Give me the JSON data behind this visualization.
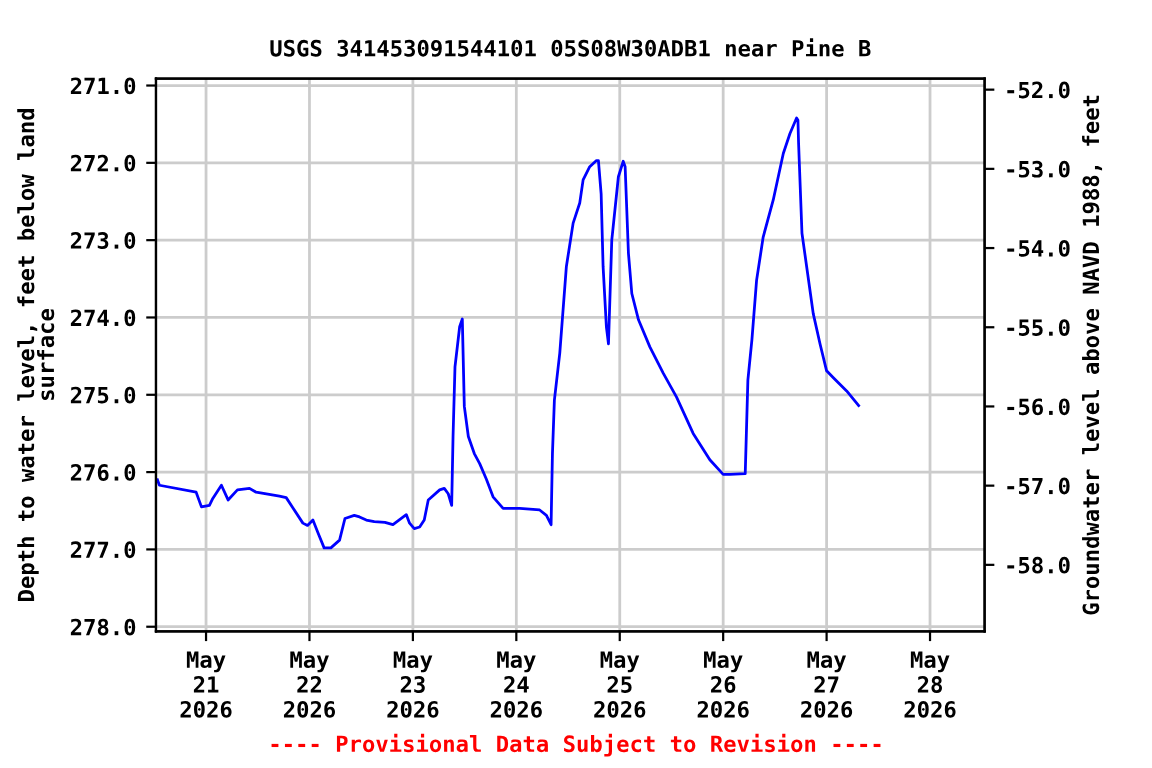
{
  "chart_data": {
    "type": "line",
    "title": "USGS 341453091544101 05S08W30ADB1 near Pine B",
    "ylabel": "Depth to water level, feet below land\nsurface",
    "y2label": "Groundwater level above NAVD 1988, feet",
    "annotations": [
      "---- Provisional Data Subject to Revision ----"
    ],
    "series": [
      {
        "color": "#0000ff",
        "x": [
          "2026-05-20T12:43",
          "2026-05-20T13:11",
          "2026-05-20T21:42",
          "2026-05-20T22:56",
          "2026-05-21T00:47",
          "2026-05-21T01:34",
          "2026-05-21T03:34",
          "2026-05-21T05:07",
          "2026-05-21T07:17",
          "2026-05-21T10:05",
          "2026-05-21T11:37",
          "2026-05-21T17:02",
          "2026-05-21T18:36",
          "2026-05-21T20:08",
          "2026-05-21T22:28",
          "2026-05-21T23:33",
          "2026-05-22T00:48",
          "2026-05-22T02:01",
          "2026-05-22T03:24",
          "2026-05-22T04:58",
          "2026-05-22T06:59",
          "2026-05-22T08:14",
          "2026-05-22T10:24",
          "2026-05-22T11:37",
          "2026-05-22T13:11",
          "2026-05-22T15:02",
          "2026-05-22T17:31",
          "2026-05-22T19:22",
          "2026-05-22T22:28",
          "2026-05-22T23:14",
          "2026-05-23T00:19",
          "2026-05-23T01:34",
          "2026-05-23T02:38",
          "2026-05-23T03:34",
          "2026-05-23T06:13",
          "2026-05-23T07:17",
          "2026-05-23T08:12",
          "2026-05-23T09:00",
          "2026-05-23T09:19",
          "2026-05-23T09:46",
          "2026-05-23T10:51",
          "2026-05-23T11:28",
          "2026-05-23T11:56",
          "2026-05-23T12:52",
          "2026-05-23T14:15",
          "2026-05-23T15:30",
          "2026-05-23T17:02",
          "2026-05-23T18:36",
          "2026-05-23T20:56",
          "2026-05-24T00:48",
          "2026-05-24T05:25",
          "2026-05-24T06:59",
          "2026-05-24T08:04",
          "2026-05-24T08:23",
          "2026-05-24T08:50",
          "2026-05-24T10:05",
          "2026-05-24T11:37",
          "2026-05-24T13:11",
          "2026-05-24T14:43",
          "2026-05-24T15:30",
          "2026-05-24T17:02",
          "2026-05-24T18:36",
          "2026-05-24T19:03",
          "2026-05-24T19:41",
          "2026-05-24T20:08",
          "2026-05-24T20:54",
          "2026-05-24T21:23",
          "2026-05-24T22:09",
          "2026-05-24T23:41",
          "2026-05-25T00:48",
          "2026-05-25T01:15",
          "2026-05-25T02:01",
          "2026-05-25T02:48",
          "2026-05-25T04:21",
          "2026-05-25T06:59",
          "2026-05-25T10:05",
          "2026-05-25T13:11",
          "2026-05-25T17:02",
          "2026-05-25T20:54",
          "2026-05-26T00:00",
          "2026-05-26T01:34",
          "2026-05-26T05:07",
          "2026-05-26T05:44",
          "2026-05-26T06:40",
          "2026-05-26T07:45",
          "2026-05-26T09:17",
          "2026-05-26T11:37",
          "2026-05-26T13:57",
          "2026-05-26T15:30",
          "2026-05-26T17:02",
          "2026-05-26T17:21",
          "2026-05-26T17:30",
          "2026-05-26T18:17",
          "2026-05-26T19:22",
          "2026-05-26T20:54",
          "2026-05-26T22:28",
          "2026-05-27T00:00",
          "2026-05-27T01:34",
          "2026-05-27T04:39",
          "2026-05-27T07:26"
        ],
        "values": [
          276.1,
          276.17,
          276.26,
          276.45,
          276.43,
          276.34,
          276.17,
          276.36,
          276.23,
          276.21,
          276.26,
          276.31,
          276.33,
          276.46,
          276.66,
          276.69,
          276.62,
          276.79,
          276.98,
          276.98,
          276.88,
          276.6,
          276.56,
          276.58,
          276.62,
          276.64,
          276.65,
          276.68,
          276.55,
          276.66,
          276.73,
          276.71,
          276.62,
          276.36,
          276.23,
          276.21,
          276.28,
          276.43,
          275.54,
          274.64,
          274.12,
          274.02,
          275.15,
          275.54,
          275.76,
          275.89,
          276.09,
          276.32,
          276.47,
          276.47,
          276.49,
          276.56,
          276.68,
          275.76,
          275.07,
          274.46,
          273.34,
          272.78,
          272.52,
          272.22,
          272.05,
          271.97,
          271.97,
          272.4,
          273.34,
          274.12,
          274.34,
          273.0,
          272.18,
          271.98,
          272.05,
          273.17,
          273.69,
          274.03,
          274.38,
          274.72,
          275.03,
          275.5,
          275.84,
          276.03,
          276.03,
          276.02,
          274.81,
          274.29,
          273.52,
          272.96,
          272.48,
          271.88,
          271.62,
          271.42,
          271.45,
          271.75,
          272.91,
          273.34,
          273.95,
          274.34,
          274.69,
          274.78,
          274.95,
          275.14
        ]
      }
    ],
    "xlim": [
      "2026-05-20T12:23",
      "2026-05-28T12:40"
    ],
    "xticks": [
      {
        "value": "2026-05-21",
        "label": "May\n21\n2026"
      },
      {
        "value": "2026-05-22",
        "label": "May\n22\n2026"
      },
      {
        "value": "2026-05-23",
        "label": "May\n23\n2026"
      },
      {
        "value": "2026-05-24",
        "label": "May\n24\n2026"
      },
      {
        "value": "2026-05-25",
        "label": "May\n25\n2026"
      },
      {
        "value": "2026-05-26",
        "label": "May\n26\n2026"
      },
      {
        "value": "2026-05-27",
        "label": "May\n27\n2026"
      },
      {
        "value": "2026-05-28",
        "label": "May\n28\n2026"
      }
    ],
    "ylim": [
      278.06,
      270.91
    ],
    "yticks": [
      {
        "value": 271,
        "label": "271.0"
      },
      {
        "value": 272,
        "label": "272.0"
      },
      {
        "value": 273,
        "label": "273.0"
      },
      {
        "value": 274,
        "label": "274.0"
      },
      {
        "value": 275,
        "label": "275.0"
      },
      {
        "value": 276,
        "label": "276.0"
      },
      {
        "value": 277,
        "label": "277.0"
      },
      {
        "value": 278,
        "label": "278.0"
      }
    ],
    "y2lim": [
      -58.84,
      -51.86
    ],
    "y2ticks": [
      {
        "value": -52,
        "label": "-52.0"
      },
      {
        "value": -53,
        "label": "-53.0"
      },
      {
        "value": -54,
        "label": "-54.0"
      },
      {
        "value": -55,
        "label": "-55.0"
      },
      {
        "value": -56,
        "label": "-56.0"
      },
      {
        "value": -57,
        "label": "-57.0"
      },
      {
        "value": -58,
        "label": "-58.0"
      }
    ],
    "grid": true,
    "marker": "none",
    "line_style": "solid"
  }
}
